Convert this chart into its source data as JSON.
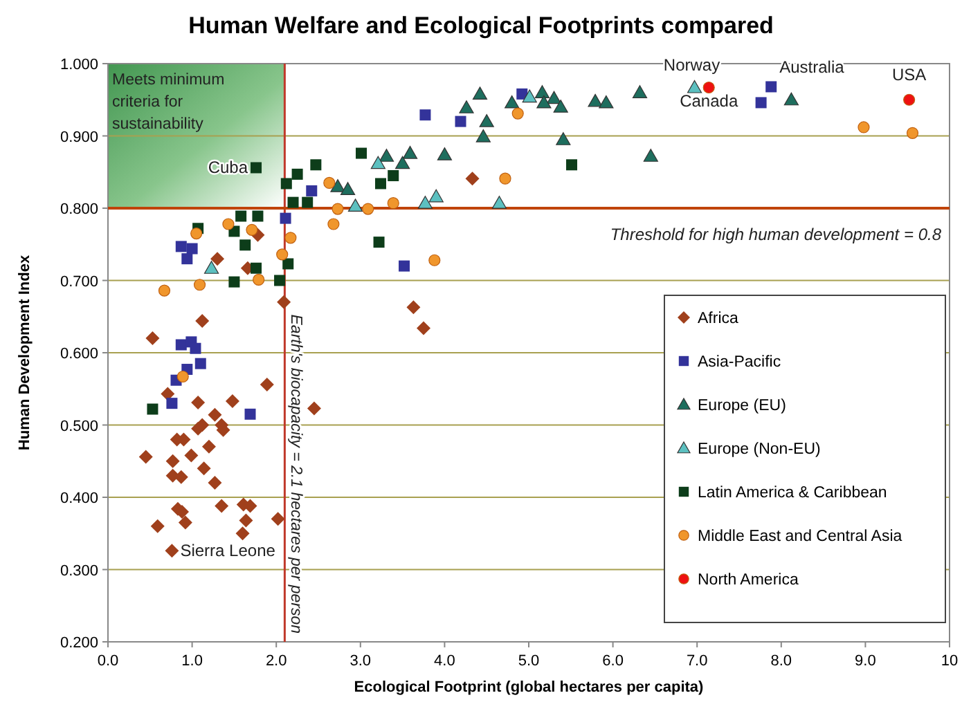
{
  "chart_data": {
    "type": "scatter",
    "title": "Human Welfare and Ecological Footprints compared",
    "xlabel": "Ecological Footprint (global hectares per capita)",
    "ylabel": "Human Development Index",
    "xlim": [
      0,
      10
    ],
    "ylim": [
      0.2,
      1.0
    ],
    "xticks": [
      {
        "value": 0,
        "label": "0.0"
      },
      {
        "value": 1,
        "label": "1.0"
      },
      {
        "value": 2,
        "label": "2.0"
      },
      {
        "value": 3,
        "label": "3.0"
      },
      {
        "value": 4,
        "label": "4.0"
      },
      {
        "value": 5,
        "label": "5.0"
      },
      {
        "value": 6,
        "label": "6.0"
      },
      {
        "value": 7,
        "label": "7.0"
      },
      {
        "value": 8,
        "label": "8.0"
      },
      {
        "value": 9,
        "label": "9.0"
      },
      {
        "value": 10,
        "label": "10"
      }
    ],
    "yticks": [
      {
        "value": 0.2,
        "label": "0.200"
      },
      {
        "value": 0.3,
        "label": "0.300"
      },
      {
        "value": 0.4,
        "label": "0.400"
      },
      {
        "value": 0.5,
        "label": "0.500"
      },
      {
        "value": 0.6,
        "label": "0.600"
      },
      {
        "value": 0.7,
        "label": "0.700"
      },
      {
        "value": 0.8,
        "label": "0.800"
      },
      {
        "value": 0.9,
        "label": "0.900"
      },
      {
        "value": 1.0,
        "label": "1.000"
      }
    ],
    "grid": "y",
    "legend": "bottom right",
    "series": [
      {
        "name": "Africa",
        "color": "#a0401c",
        "marker": "diamond",
        "x": [
          1.12,
          0.53,
          1.89,
          0.71,
          1.07,
          1.48,
          2.45,
          1.27,
          1.12,
          1.07,
          1.35,
          1.37,
          0.82,
          0.9,
          1.2,
          0.45,
          0.77,
          0.99,
          1.14,
          0.77,
          0.87,
          1.27,
          1.35,
          0.83,
          0.88,
          1.61,
          1.69,
          0.59,
          0.92,
          1.64,
          2.02,
          1.6,
          0.76,
          2.09,
          1.3,
          1.66,
          1.78,
          4.33,
          3.63,
          3.75
        ],
        "values": [
          0.644,
          0.62,
          0.556,
          0.543,
          0.531,
          0.533,
          0.523,
          0.514,
          0.5,
          0.495,
          0.5,
          0.493,
          0.48,
          0.48,
          0.47,
          0.456,
          0.45,
          0.458,
          0.44,
          0.43,
          0.428,
          0.42,
          0.388,
          0.384,
          0.38,
          0.39,
          0.388,
          0.36,
          0.365,
          0.368,
          0.37,
          0.35,
          0.326,
          0.67,
          0.73,
          0.717,
          0.763,
          0.841,
          0.663,
          0.634
        ]
      },
      {
        "name": "Asia-Pacific",
        "color": "#33339a",
        "marker": "square",
        "x": [
          0.87,
          0.99,
          1.04,
          1.1,
          0.94,
          0.81,
          0.76,
          null,
          1.69,
          0.87,
          1.0,
          0.94,
          2.42,
          2.11,
          3.77,
          4.19,
          4.92,
          3.52,
          7.88,
          7.76
        ],
        "values": [
          0.611,
          0.615,
          0.606,
          0.585,
          0.577,
          0.562,
          0.53,
          null,
          0.515,
          0.747,
          0.744,
          0.73,
          0.824,
          0.786,
          0.929,
          0.92,
          0.958,
          0.72,
          0.968,
          0.946
        ]
      },
      {
        "name": "Europe (EU)",
        "color": "#1e6e5e",
        "marker": "triangle",
        "x": [
          4.42,
          4.26,
          4.8,
          5.16,
          5.3,
          5.38,
          5.18,
          5.79,
          5.92,
          6.32,
          4.5,
          4.46,
          5.41,
          6.45,
          4.0,
          3.59,
          3.31,
          3.5,
          8.12,
          2.73,
          2.85
        ],
        "values": [
          0.958,
          0.939,
          0.946,
          0.96,
          0.952,
          0.94,
          0.946,
          0.948,
          0.946,
          0.96,
          0.92,
          0.899,
          0.895,
          0.872,
          0.874,
          0.876,
          0.872,
          0.862,
          0.95,
          0.83,
          0.826
        ]
      },
      {
        "name": "Europe (Non-EU)",
        "color": "#5cc0c0",
        "marker": "triangle",
        "x": [
          5.01,
          3.21,
          3.9,
          3.77,
          4.65,
          2.94,
          1.23,
          6.97
        ],
        "values": [
          0.954,
          0.862,
          0.816,
          0.807,
          0.807,
          0.803,
          0.717,
          0.967
        ]
      },
      {
        "name": "Latin America & Caribbean",
        "color": "#0d3d1a",
        "marker": "square",
        "x": [
          1.76,
          3.01,
          2.47,
          2.25,
          2.12,
          3.24,
          2.2,
          2.37,
          1.58,
          1.78,
          1.07,
          1.5,
          1.63,
          1.76,
          2.14,
          1.5,
          2.04,
          3.22,
          3.39,
          5.51,
          0.53
        ],
        "values": [
          0.856,
          0.876,
          0.86,
          0.847,
          0.834,
          0.834,
          0.808,
          0.808,
          0.789,
          0.789,
          0.772,
          0.768,
          0.749,
          0.717,
          0.723,
          0.698,
          0.7,
          0.753,
          0.845,
          0.86,
          0.522
        ]
      },
      {
        "name": "Middle East and Central Asia",
        "color": "#f0962c",
        "marker": "circle",
        "x": [
          2.63,
          2.73,
          3.09,
          2.68,
          1.43,
          1.05,
          1.71,
          2.17,
          2.07,
          1.09,
          0.67,
          1.79,
          0.89,
          3.39,
          3.88,
          4.72,
          4.87,
          8.98,
          9.56
        ],
        "values": [
          0.835,
          0.799,
          0.799,
          0.778,
          0.778,
          0.765,
          0.77,
          0.759,
          0.736,
          0.694,
          0.686,
          0.701,
          0.567,
          0.807,
          0.728,
          0.841,
          0.931,
          0.912,
          0.904
        ]
      },
      {
        "name": "North America",
        "color": "#ee1111",
        "marker": "circle",
        "x": [
          7.14,
          9.52
        ],
        "values": [
          0.967,
          0.95
        ]
      }
    ],
    "ref_lines": [
      {
        "axis": "x",
        "value": 2.1,
        "label": "Earth's biocapacity = 2.1 hectares per person",
        "color": "#c0392b"
      },
      {
        "axis": "y",
        "value": 0.8,
        "label": "Threshold for high human development = 0.8",
        "color": "#c0440a"
      }
    ],
    "annotations": [
      "Meets minimum criteria for sustainability",
      {
        "text": "Cuba",
        "x": 1.76,
        "y": 0.856
      },
      {
        "text": "Sierra Leone",
        "x": 0.76,
        "y": 0.326
      },
      {
        "text": "Norway",
        "x": 6.97,
        "y": 0.967
      },
      {
        "text": "Canada",
        "x": 7.14,
        "y": 0.967
      },
      {
        "text": "Australia",
        "x": 7.88,
        "y": 0.968
      },
      {
        "text": "USA",
        "x": 9.52,
        "y": 0.95
      }
    ]
  }
}
